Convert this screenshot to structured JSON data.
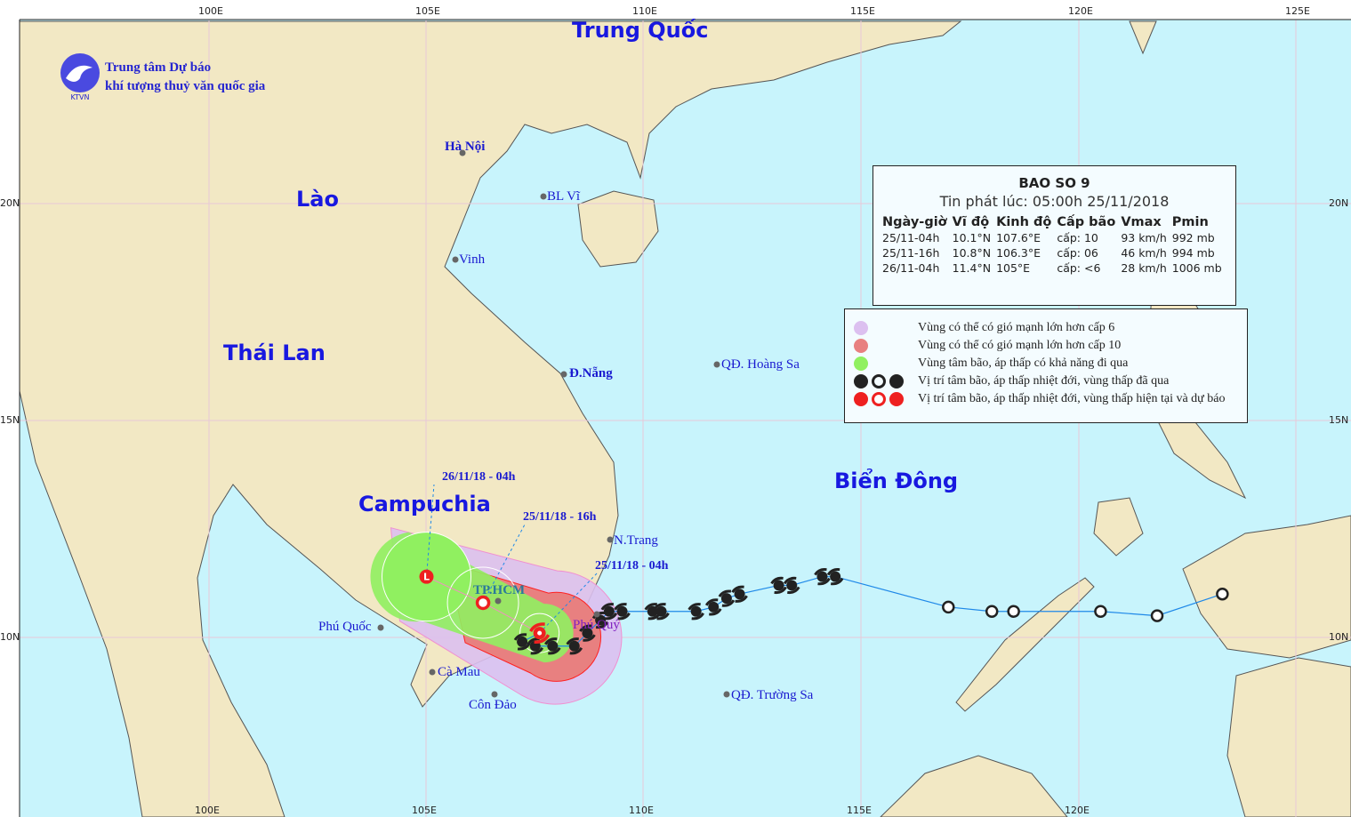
{
  "logo": {
    "line1": "Trung tâm Dự báo",
    "line2": "khí tượng thuỷ văn quốc gia",
    "mark": "KTVN"
  },
  "axes": {
    "lon_ticks": [
      "100E",
      "105E",
      "110E",
      "115E",
      "120E",
      "125E"
    ],
    "lat_ticks": [
      "20N",
      "15N",
      "10N"
    ]
  },
  "countries": {
    "china": "Trung Quốc",
    "laos": "Lào",
    "thailand": "Thái Lan",
    "cambodia": "Campuchia",
    "sea": "Biển Đông"
  },
  "places": {
    "hanoi": "Hà Nội",
    "blvi": "BL Vĩ",
    "vinh": "Vinh",
    "danang": "Đ.Nẵng",
    "hoangsa": "QĐ. Hoàng Sa",
    "nhatrang": "N.Trang",
    "hcm": "TP.HCM",
    "phuquy": "Phú Quý",
    "phuquoc": "Phú Quốc",
    "camau": "Cà Mau",
    "condao": "Côn Đảo",
    "truongsa": "QĐ. Trường Sa"
  },
  "forecast_labels": {
    "t0": "25/11/18 - 04h",
    "t1": "25/11/18 - 16h",
    "t2": "26/11/18 - 04h"
  },
  "info": {
    "title": "BAO SO 9",
    "issued": "Tin phát lúc: 05:00h 25/11/2018",
    "headers": [
      "Ngày-giờ",
      "Vĩ độ",
      "Kinh độ",
      "Cấp bão",
      "Vmax",
      "Pmin"
    ],
    "rows": [
      [
        "25/11-04h",
        "10.1°N",
        "107.6°E",
        "cấp: 10",
        "93 km/h",
        "992 mb"
      ],
      [
        "25/11-16h",
        "10.8°N",
        "106.3°E",
        "cấp: 06",
        "46 km/h",
        "994 mb"
      ],
      [
        "26/11-04h",
        "11.4°N",
        "105°E",
        "cấp: <6",
        "28 km/h",
        "1006 mb"
      ]
    ]
  },
  "legend": {
    "items": [
      {
        "label": "Vùng có thể có gió mạnh lớn hơn cấp 6",
        "color": "#dcc0f0"
      },
      {
        "label": "Vùng có thể có gió mạnh lớn hơn cấp 10",
        "color": "#e88080"
      },
      {
        "label": "Vùng tâm bão, áp thấp có khả năng đi qua",
        "color": "#90f060"
      },
      {
        "label": "Vị trí tâm bão, áp thấp nhiệt đới, vùng thấp đã qua",
        "color": "#222222"
      },
      {
        "label": "Vị trí tâm bão, áp thấp nhiệt đới, vùng thấp hiện tại và dự báo",
        "color": "#ee2020"
      }
    ]
  },
  "colors": {
    "ocean": "#c8f4fc",
    "land": "#f2e8c4",
    "track": "#1e88e8",
    "current": "#ee2020",
    "past": "#222222"
  },
  "storm": {
    "current": {
      "lon": 107.6,
      "lat": 10.1
    },
    "forecast": [
      {
        "lon": 106.3,
        "lat": 10.8
      },
      {
        "lon": 105.0,
        "lat": 11.4
      }
    ],
    "past_storm_points": [
      [
        107.2,
        9.9
      ],
      [
        107.5,
        9.8
      ],
      [
        107.9,
        9.8
      ],
      [
        108.4,
        9.8
      ],
      [
        108.7,
        10.1
      ],
      [
        109.0,
        10.4
      ],
      [
        109.2,
        10.6
      ],
      [
        109.5,
        10.6
      ],
      [
        110.2,
        10.6
      ],
      [
        110.4,
        10.6
      ],
      [
        111.2,
        10.6
      ],
      [
        111.6,
        10.7
      ],
      [
        111.9,
        10.9
      ],
      [
        112.2,
        11.0
      ],
      [
        113.1,
        11.2
      ],
      [
        113.4,
        11.2
      ],
      [
        114.1,
        11.4
      ],
      [
        114.4,
        11.4
      ]
    ],
    "past_depression_points": [
      [
        117.0,
        10.7
      ],
      [
        118.0,
        10.6
      ],
      [
        118.5,
        10.6
      ],
      [
        120.5,
        10.6
      ],
      [
        121.8,
        10.5
      ],
      [
        123.3,
        11.0
      ]
    ]
  }
}
